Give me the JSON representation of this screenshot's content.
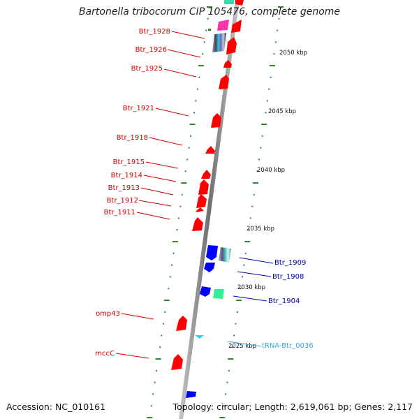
{
  "title": "Bartonella tribocorum CIP 105476, complete genome",
  "footer": {
    "accession": "Accession: NC_010161",
    "topology": "Topology: circular; Length: 2,619,061 bp; Genes: 2,117"
  },
  "colors": {
    "forward_cds": "#ff0000",
    "reverse_cds": "#0000ff",
    "trna": "#33ccff",
    "tick": "#2e8b2e",
    "backbone": "#888888",
    "left_label": "#cc0000",
    "right_label": "#0000aa",
    "trna_label": "#33aadd"
  },
  "scale_labels": [
    "2050 kbp",
    "2045 kbp",
    "2040 kbp",
    "2035 kbp",
    "2030 kbp",
    "2025 kbp"
  ],
  "left_genes": [
    "Btr_1928",
    "Btr_1926",
    "Btr_1925",
    "Btr_1921",
    "Btr_1918",
    "Btr_1915",
    "Btr_1914",
    "Btr_1913",
    "Btr_1912",
    "Btr_1911",
    "omp43",
    "mccC"
  ],
  "right_genes": [
    "Btr_1909",
    "Btr_1908",
    "Btr_1904"
  ],
  "trna_label": "tRNA-Btr_0036"
}
